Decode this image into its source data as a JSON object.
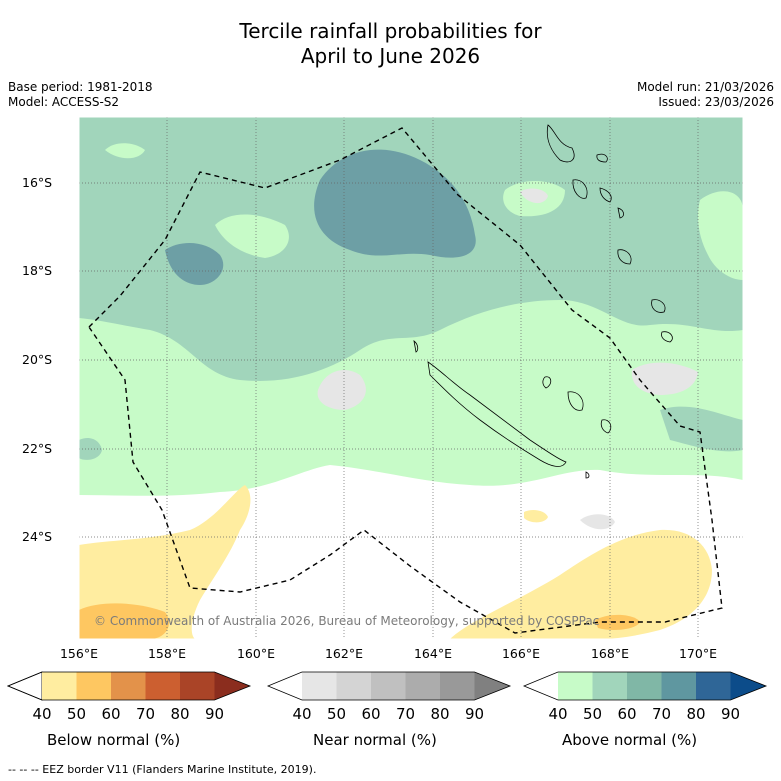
{
  "title": {
    "line1": "Tercile rainfall probabilities for",
    "line2": "April to June 2026"
  },
  "info": {
    "base_period": "Base period: 1981-2018",
    "model": "Model: ACCESS-S2",
    "model_run": "Model run: 21/03/2026",
    "issued": "Issued: 23/03/2026"
  },
  "map": {
    "lat_ticks": [
      "16°S",
      "18°S",
      "20°S",
      "22°S",
      "24°S"
    ],
    "lon_ticks": [
      "156°E",
      "158°E",
      "160°E",
      "162°E",
      "164°E",
      "166°E",
      "168°E",
      "170°E"
    ],
    "copyright": "© Commonwealth of Australia 2026, Bureau of Meteorology, supported by COSPPac",
    "background_color": "#ffffff"
  },
  "legend": {
    "below": {
      "label": "Below normal (%)",
      "ticks": [
        "40",
        "50",
        "60",
        "70",
        "80",
        "90"
      ],
      "colors": [
        "#ffffff",
        "#ffeda0",
        "#fec761",
        "#e3924a",
        "#cc5f30",
        "#aa4427",
        "#8b2d1e"
      ]
    },
    "near": {
      "label": "Near normal (%)",
      "ticks": [
        "40",
        "50",
        "60",
        "70",
        "80",
        "90"
      ],
      "colors": [
        "#ffffff",
        "#e6e6e6",
        "#d4d4d4",
        "#c0c0c0",
        "#acacac",
        "#999999",
        "#808080"
      ]
    },
    "above": {
      "label": "Above normal (%)",
      "ticks": [
        "40",
        "50",
        "60",
        "70",
        "80",
        "90"
      ],
      "colors": [
        "#ffffff",
        "#c7fbc8",
        "#a1d5bb",
        "#80b7a6",
        "#5f97a0",
        "#2f6697",
        "#0c4c8a"
      ]
    }
  },
  "footer": {
    "eez_note": "-- -- -- EEZ border V11 (Flanders Marine Institute, 2019)."
  }
}
